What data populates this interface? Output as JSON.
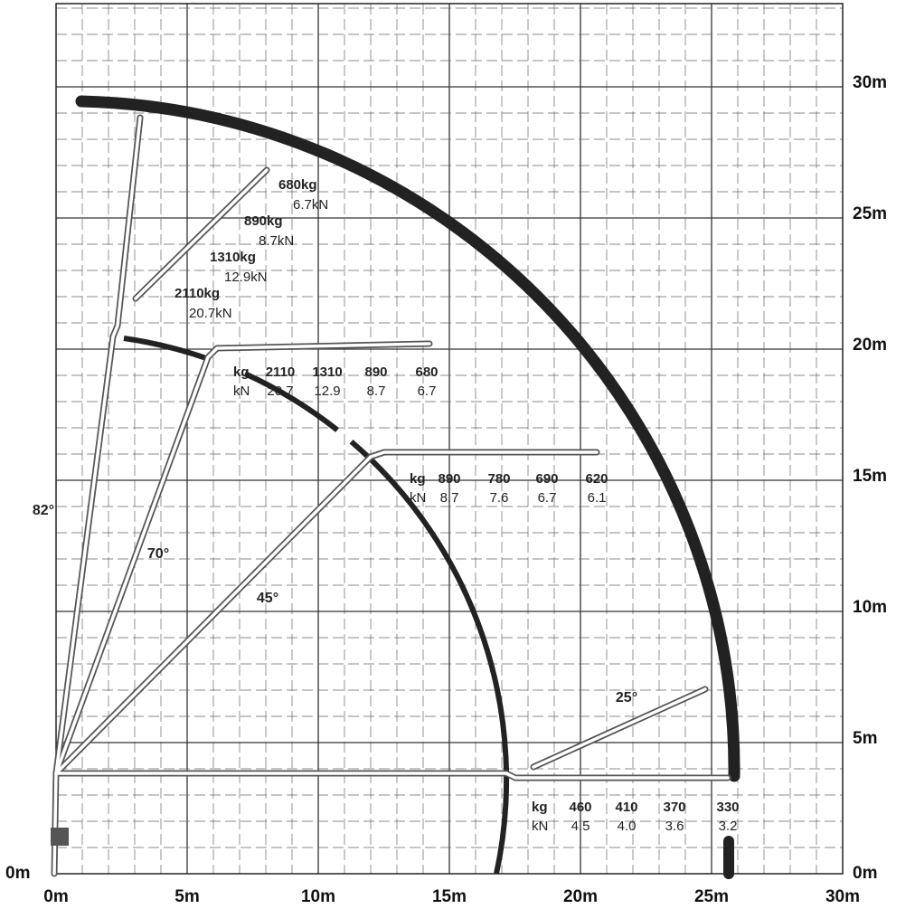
{
  "x_axis": {
    "labels": [
      "0m",
      "5m",
      "10m",
      "15m",
      "20m",
      "25m",
      "30m"
    ]
  },
  "y_axis": {
    "labels": [
      "0m",
      "5m",
      "10m",
      "15m",
      "20m",
      "25m",
      "30m"
    ],
    "origin_label": "0m"
  },
  "angles": [
    "82°",
    "70°",
    "45°",
    "25°"
  ],
  "boom_loads": [
    {
      "kg": "680kg",
      "kn": "6.7kN"
    },
    {
      "kg": "890kg",
      "kn": "8.7kN"
    },
    {
      "kg": "1310kg",
      "kn": "12.9kN"
    },
    {
      "kg": "2110kg",
      "kn": "20.7kN"
    }
  ],
  "load_tables": [
    {
      "kg_label": "kg",
      "kn_label": "kN",
      "kg": [
        "2110",
        "1310",
        "890",
        "680"
      ],
      "kn": [
        "20.7",
        "12.9",
        "8.7",
        "6.7"
      ]
    },
    {
      "kg_label": "kg",
      "kn_label": "kN",
      "kg": [
        "890",
        "780",
        "690",
        "620"
      ],
      "kn": [
        "8.7",
        "7.6",
        "6.7",
        "6.1"
      ]
    },
    {
      "kg_label": "kg",
      "kn_label": "kN",
      "kg": [
        "460",
        "410",
        "370",
        "330"
      ],
      "kn": [
        "4.5",
        "4.0",
        "3.6",
        "3.2"
      ]
    }
  ]
}
